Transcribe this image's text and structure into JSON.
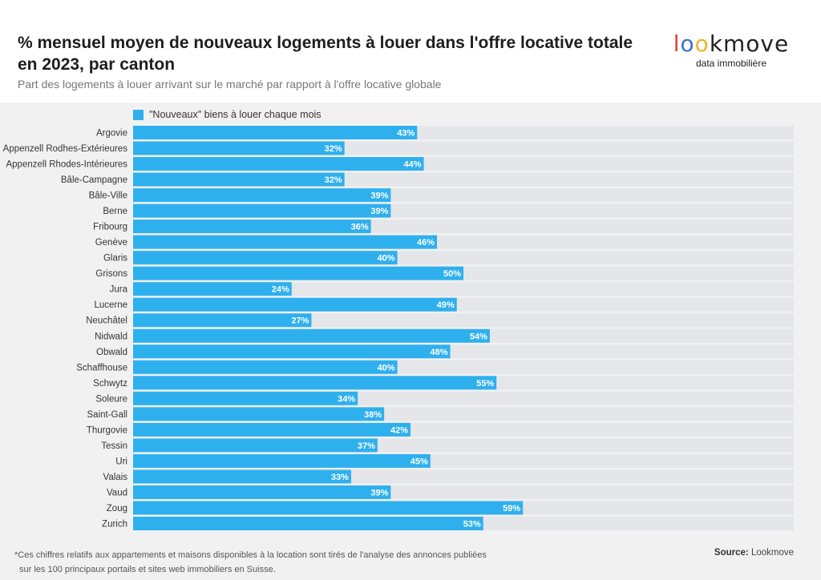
{
  "header": {
    "title": "% mensuel moyen de nouveaux logements à louer dans l'offre locative totale en 2023, par canton",
    "subtitle": "Part des logements à louer arrivant sur le marché par rapport à l'offre locative globale",
    "logo": {
      "word": "lookmove",
      "tagline": "data immobilière"
    }
  },
  "colors": {
    "bar": "#2fb0ee",
    "track": "#e4e6ea",
    "background": "#f1f1f1",
    "label_text": "#ffffff"
  },
  "chart_data": {
    "type": "bar",
    "orientation": "horizontal",
    "xlim": [
      0,
      100
    ],
    "grid": false,
    "legend_position": "top-left",
    "series": [
      {
        "name": "\"Nouveaux\" biens à louer chaque mois",
        "values": [
          43,
          32,
          44,
          32,
          39,
          39,
          36,
          46,
          40,
          50,
          24,
          49,
          27,
          54,
          48,
          40,
          55,
          34,
          38,
          42,
          37,
          45,
          33,
          39,
          59,
          53
        ]
      }
    ],
    "categories": [
      "Argovie",
      "Appenzell Rodhes-Extérieures",
      "Appenzell Rhodes-Intérieures",
      "Bâle-Campagne",
      "Bâle-Ville",
      "Berne",
      "Fribourg",
      "Genève",
      "Glaris",
      "Grisons",
      "Jura",
      "Lucerne",
      "Neuchâtel",
      "Nidwald",
      "Obwald",
      "Schaffhouse",
      "Schwytz",
      "Soleure",
      "Saint-Gall",
      "Thurgovie",
      "Tessin",
      "Uri",
      "Valais",
      "Vaud",
      "Zoug",
      "Zurich"
    ],
    "value_labels": [
      "43%",
      "32%",
      "44%",
      "32%",
      "39%",
      "39%",
      "36%",
      "46%",
      "40%",
      "50%",
      "24%",
      "49%",
      "27%",
      "54%",
      "48%",
      "40%",
      "55%",
      "34%",
      "38%",
      "42%",
      "37%",
      "45%",
      "33%",
      "39%",
      "59%",
      "53%"
    ]
  },
  "footer": {
    "note_line1": "*Ces chiffres relatifs aux appartements et maisons disponibles à la location sont tirés de l'analyse des annonces publiées",
    "note_line2": "sur les 100 principaux portails et sites web immobiliers en Suisse.",
    "source_label": "Source:",
    "source_value": "Lookmove"
  }
}
